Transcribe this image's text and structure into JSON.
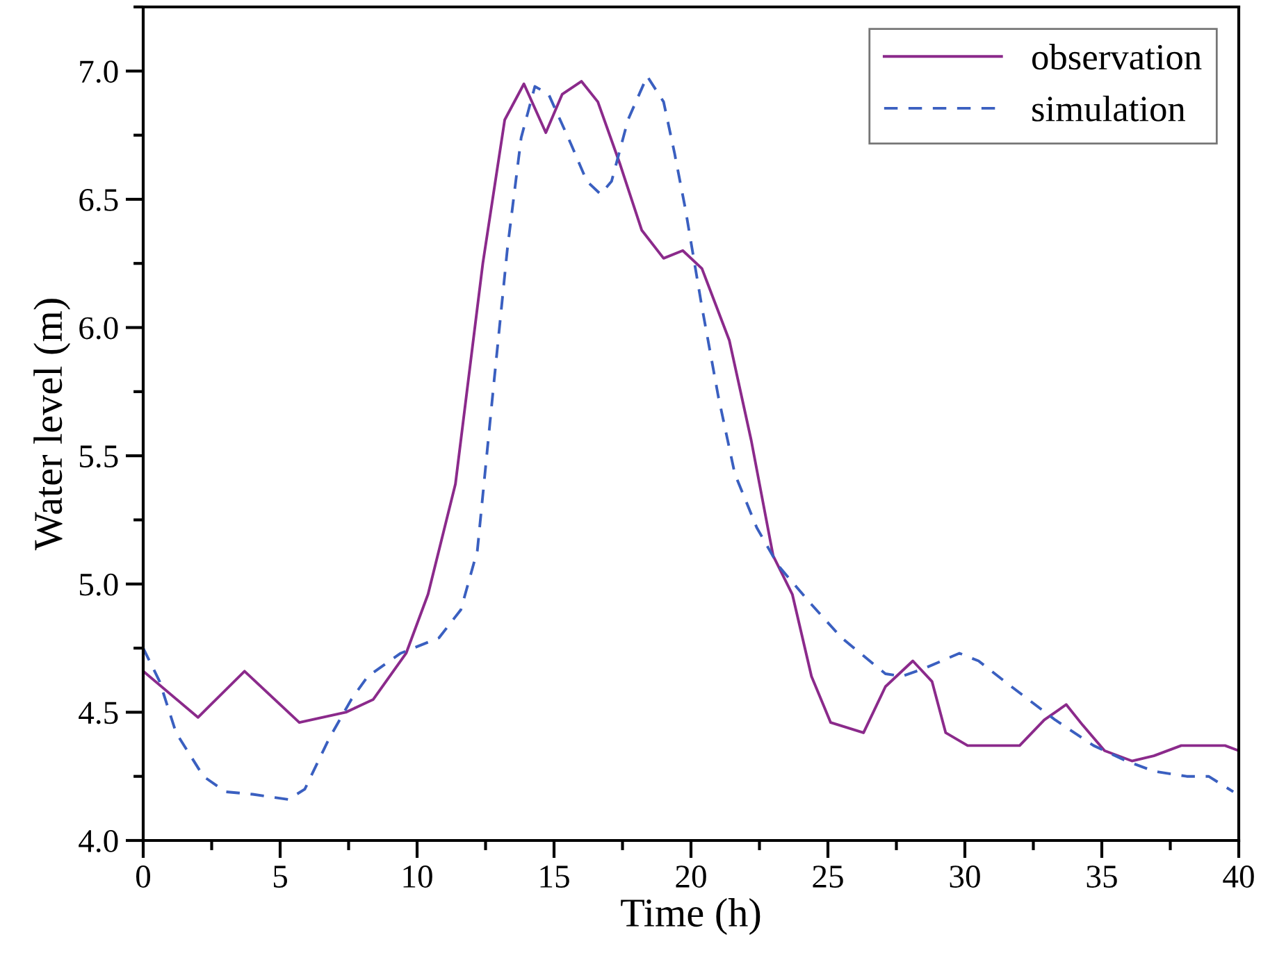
{
  "chart_data": {
    "type": "line",
    "xlabel": "Time (h)",
    "ylabel": "Water level (m)",
    "xlim": [
      0,
      40
    ],
    "xticks": [
      0,
      5,
      10,
      15,
      20,
      25,
      30,
      35,
      40
    ],
    "ylim": [
      4.0,
      7.25
    ],
    "yticks": [
      {
        "value": 4.0,
        "label": "4.0"
      },
      {
        "value": 4.5,
        "label": "4.5"
      },
      {
        "value": 5.0,
        "label": "5.0"
      },
      {
        "value": 5.5,
        "label": "5.5"
      },
      {
        "value": 6.0,
        "label": "6.0"
      },
      {
        "value": 6.5,
        "label": "6.5"
      },
      {
        "value": 7.0,
        "label": "7.0"
      }
    ],
    "grid": false,
    "legend": "top right",
    "series": [
      {
        "name": "observation",
        "color": "#8b2a8b",
        "line_style": "solid",
        "x": [
          0,
          2.0,
          3.7,
          5.7,
          7.4,
          8.4,
          9.6,
          10.4,
          11.4,
          12.4,
          13.2,
          13.9,
          14.7,
          15.3,
          16.0,
          16.6,
          17.4,
          18.2,
          19.0,
          19.7,
          20.4,
          21.4,
          22.2,
          23.0,
          23.7,
          24.4,
          25.1,
          26.3,
          27.1,
          28.1,
          28.8,
          29.3,
          30.1,
          32.0,
          32.9,
          33.7,
          34.3,
          35.1,
          36.1,
          36.9,
          37.9,
          39.5,
          40
        ],
        "values": [
          4.66,
          4.48,
          4.66,
          4.46,
          4.5,
          4.55,
          4.73,
          4.96,
          5.39,
          6.25,
          6.81,
          6.95,
          6.76,
          6.91,
          6.96,
          6.88,
          6.64,
          6.38,
          6.27,
          6.3,
          6.23,
          5.95,
          5.56,
          5.11,
          4.96,
          4.64,
          4.46,
          4.42,
          4.6,
          4.7,
          4.62,
          4.42,
          4.37,
          4.37,
          4.47,
          4.53,
          4.45,
          4.35,
          4.31,
          4.33,
          4.37,
          4.37,
          4.35
        ]
      },
      {
        "name": "simulation",
        "color": "#3a5fc0",
        "line_style": "dashed",
        "x": [
          0,
          0.6,
          1.2,
          2.2,
          3.0,
          4.0,
          5.3,
          5.9,
          6.8,
          7.6,
          8.2,
          9.4,
          10.8,
          11.6,
          12.2,
          12.8,
          13.3,
          13.8,
          14.3,
          14.8,
          15.6,
          16.2,
          16.7,
          17.1,
          17.7,
          18.4,
          19.0,
          19.4,
          19.8,
          20.4,
          21.0,
          21.6,
          22.4,
          23.2,
          24.4,
          25.5,
          27.1,
          27.7,
          28.5,
          29.8,
          30.5,
          31.7,
          33.3,
          34.7,
          35.9,
          36.9,
          38.1,
          38.9,
          39.8
        ],
        "values": [
          4.75,
          4.62,
          4.42,
          4.25,
          4.19,
          4.18,
          4.16,
          4.2,
          4.4,
          4.55,
          4.64,
          4.73,
          4.79,
          4.9,
          5.13,
          5.78,
          6.31,
          6.74,
          6.94,
          6.91,
          6.72,
          6.57,
          6.52,
          6.57,
          6.81,
          6.98,
          6.88,
          6.68,
          6.46,
          6.08,
          5.73,
          5.43,
          5.22,
          5.07,
          4.92,
          4.79,
          4.65,
          4.64,
          4.67,
          4.73,
          4.7,
          4.6,
          4.47,
          4.37,
          4.31,
          4.27,
          4.25,
          4.25,
          4.19
        ]
      }
    ]
  }
}
